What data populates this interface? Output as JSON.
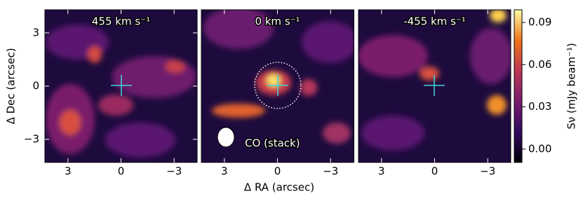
{
  "chart_data": {
    "type": "image",
    "xlabel": "Δ RA (arcsec)",
    "ylabel": "Δ Dec (arcsec)",
    "panels": [
      {
        "title": "455 km s⁻¹",
        "xlim": [
          4.3,
          -4.3
        ],
        "ylim": [
          -4.3,
          4.3
        ],
        "xticks": [
          3,
          0,
          {
            "value": -3,
            "label": "−3"
          }
        ],
        "yticks": [
          {
            "value": -3,
            "label": "−3"
          },
          0,
          3
        ]
      },
      {
        "title": "0 km s⁻¹",
        "xlim": [
          4.3,
          -4.3
        ],
        "ylim": [
          -4.3,
          4.3
        ],
        "xticks": [
          3,
          0,
          {
            "value": -3,
            "label": "−3"
          }
        ],
        "annotation": "CO (stack)"
      },
      {
        "title": "-455 km s⁻¹",
        "xlim": [
          4.3,
          -4.3
        ],
        "ylim": [
          -4.3,
          4.3
        ],
        "xticks": [
          3,
          0,
          {
            "value": -3,
            "label": "−3"
          }
        ]
      }
    ],
    "colorbar": {
      "label": "Sν (mJy beam⁻¹)",
      "lim": [
        -0.0095,
        0.099
      ],
      "ticks": [
        {
          "value": 0,
          "label": "0.00"
        },
        0.03,
        0.06,
        0.09
      ]
    }
  }
}
